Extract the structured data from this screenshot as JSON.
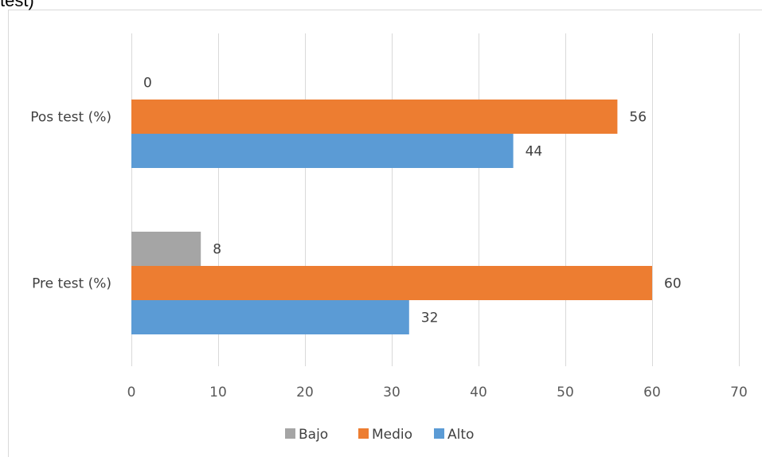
{
  "chart_data": {
    "type": "bar",
    "orientation": "horizontal",
    "title": "test)",
    "categories": [
      "Pos test (%)",
      "Pre test (%)"
    ],
    "series": [
      {
        "name": "Bajo",
        "color": "#A5A5A5",
        "values": [
          0,
          8
        ]
      },
      {
        "name": "Medio",
        "color": "#ED7D31",
        "values": [
          56,
          60
        ]
      },
      {
        "name": "Alto",
        "color": "#5B9BD5",
        "values": [
          44,
          32
        ]
      }
    ],
    "xlim": [
      0,
      70
    ],
    "xticks": [
      "0",
      "10",
      "20",
      "30",
      "40",
      "50",
      "60",
      "70"
    ],
    "grid": true,
    "legend_position": "bottom",
    "data_labels": true
  }
}
